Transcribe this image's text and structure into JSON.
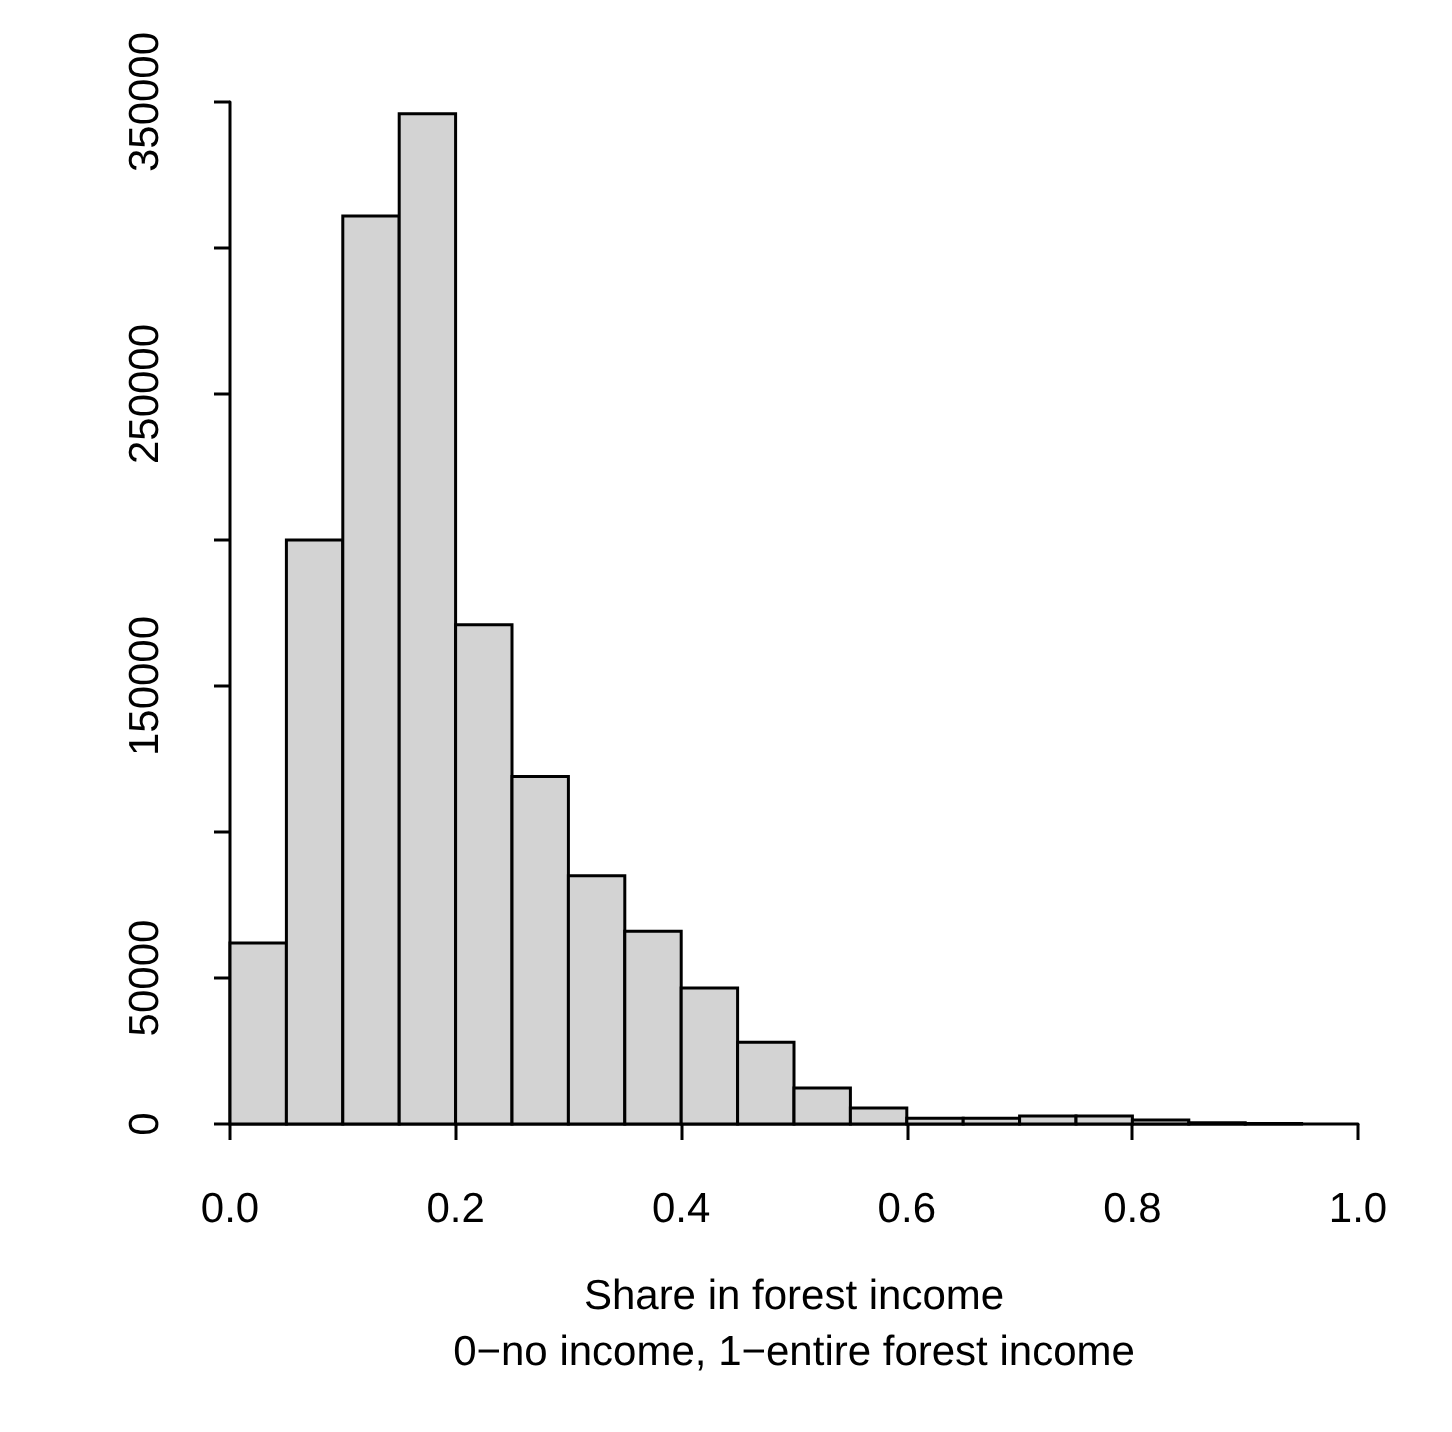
{
  "chart_data": {
    "type": "histogram",
    "xlabel": "Share in forest income\n0−no income, 1−entire forest income",
    "bins": [
      0,
      0.05,
      0.1,
      0.15,
      0.2,
      0.25,
      0.3,
      0.35,
      0.4,
      0.45,
      0.5,
      0.55,
      0.6,
      0.65,
      0.7,
      0.75,
      0.8,
      0.85,
      0.9,
      0.95,
      1.0
    ],
    "values": [
      62000,
      200000,
      311000,
      346000,
      171000,
      119000,
      85000,
      66000,
      46600,
      28000,
      12300,
      5500,
      2000,
      2000,
      2700,
      2700,
      1400,
      400,
      200,
      null
    ],
    "color": "#d3d3d3",
    "xlim": [
      0,
      1
    ],
    "xticks": [
      {
        "value": 0,
        "label": "0.0"
      },
      {
        "value": 0.2,
        "label": "0.2"
      },
      {
        "value": 0.4,
        "label": "0.4"
      },
      {
        "value": 0.6,
        "label": "0.6"
      },
      {
        "value": 0.8,
        "label": "0.8"
      },
      {
        "value": 1,
        "label": "1.0"
      }
    ],
    "ylim": [
      0,
      350000
    ],
    "yticks": [
      0,
      50000,
      {
        "value": 100000,
        "label": null
      },
      150000,
      {
        "value": 200000,
        "label": null
      },
      250000,
      {
        "value": 300000,
        "label": null
      },
      350000
    ]
  }
}
